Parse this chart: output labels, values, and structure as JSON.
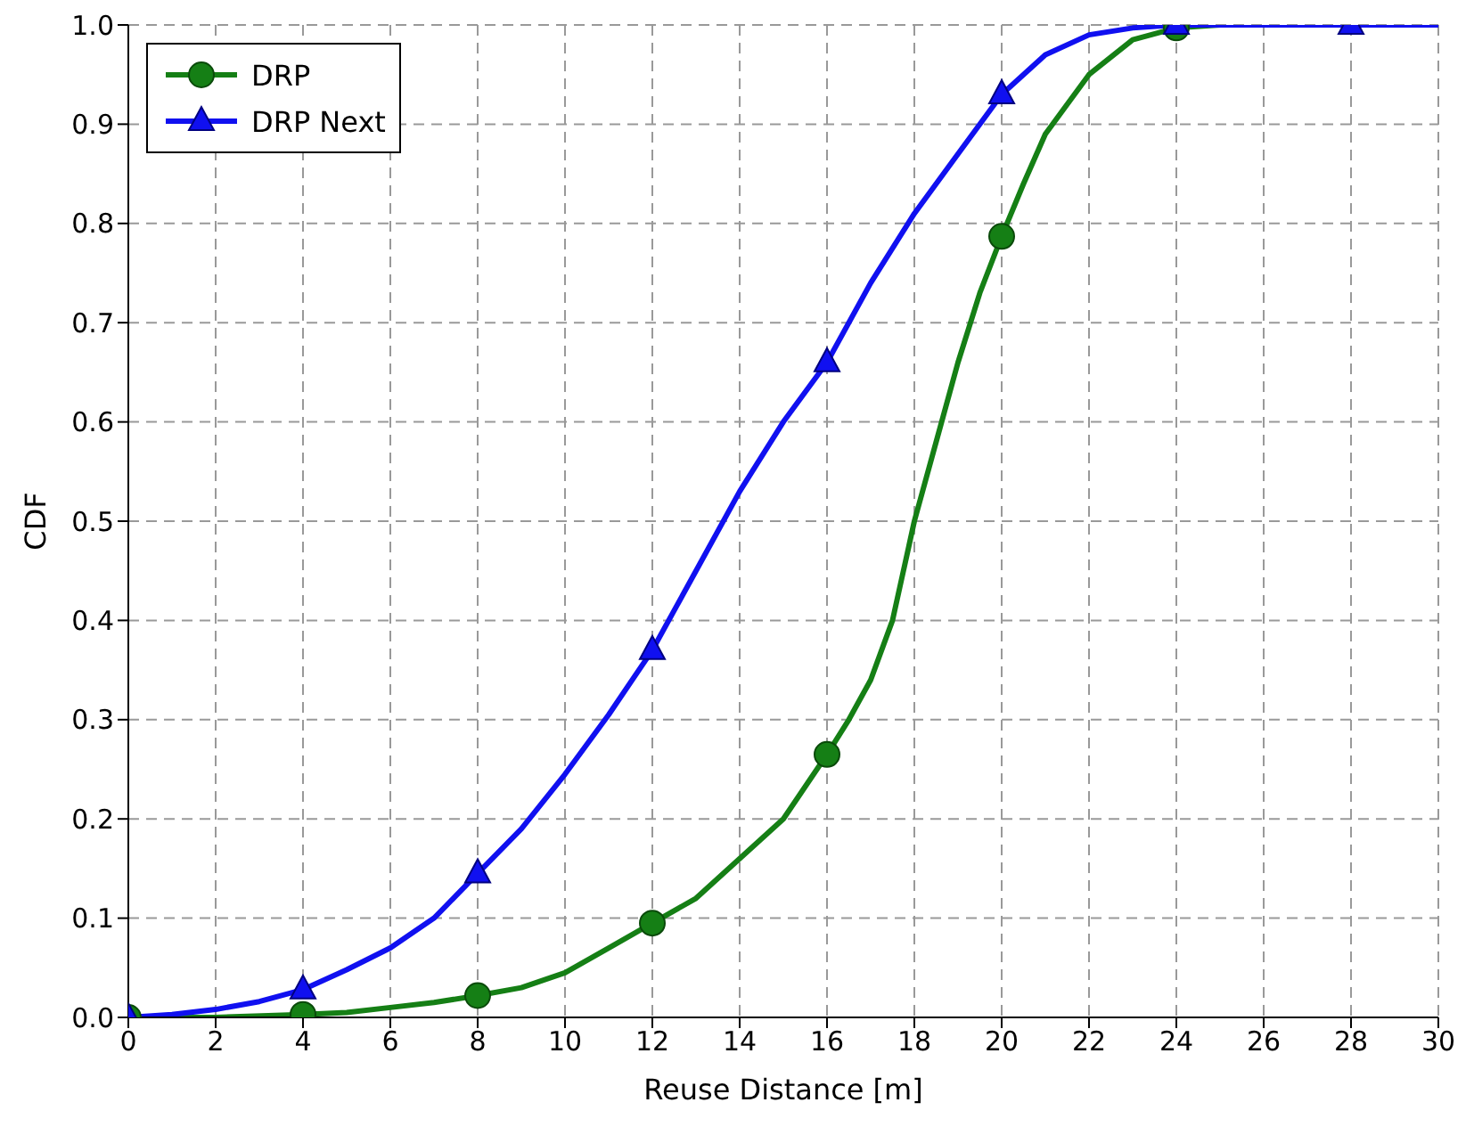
{
  "chart_data": {
    "type": "line",
    "xlabel": "Reuse Distance [m]",
    "ylabel": "CDF",
    "xlim": [
      0,
      30
    ],
    "xticks": [
      0,
      2,
      4,
      6,
      8,
      10,
      12,
      14,
      16,
      18,
      20,
      22,
      24,
      26,
      28,
      30
    ],
    "ylim": [
      0,
      1
    ],
    "yticks": [
      {
        "value": 0,
        "label": "0.0"
      },
      0.1,
      0.2,
      0.3,
      0.4,
      0.5,
      0.6,
      0.7,
      0.8,
      0.9,
      {
        "value": 1,
        "label": "1.0"
      }
    ],
    "grid": true,
    "legend": "top left",
    "line_style": "solid",
    "series": [
      {
        "name": "DRP",
        "color": "#157f15",
        "marker": "none",
        "x": [
          0,
          2,
          4,
          5,
          6,
          7,
          8,
          9,
          10,
          11,
          12,
          13,
          14,
          15,
          16,
          16.5,
          17,
          17.5,
          18,
          18.5,
          19,
          19.5,
          20,
          20.5,
          21,
          22,
          23,
          24,
          25
        ],
        "values": [
          0,
          0,
          0.003,
          0.005,
          0.01,
          0.015,
          0.022,
          0.03,
          0.045,
          0.07,
          0.095,
          0.12,
          0.16,
          0.2,
          0.265,
          0.3,
          0.34,
          0.4,
          0.5,
          0.58,
          0.66,
          0.73,
          0.787,
          0.84,
          0.89,
          0.95,
          0.985,
          0.997,
          1
        ]
      },
      {
        "name": "DRP Next",
        "color": "#1010f0",
        "marker": "none",
        "x": [
          0,
          1,
          2,
          3,
          4,
          5,
          6,
          7,
          8,
          9,
          10,
          11,
          12,
          13,
          14,
          15,
          16,
          17,
          18,
          19,
          20,
          21,
          22,
          23,
          24,
          28,
          30
        ],
        "values": [
          0,
          0.003,
          0.008,
          0.016,
          0.028,
          0.048,
          0.07,
          0.1,
          0.145,
          0.19,
          0.245,
          0.305,
          0.37,
          0.45,
          0.53,
          0.6,
          0.66,
          0.74,
          0.81,
          0.87,
          0.93,
          0.97,
          0.99,
          0.997,
          1,
          1,
          1
        ]
      },
      {
        "type": "scatter",
        "color": "#157f15",
        "marker": "circle",
        "x": [
          0,
          4,
          8,
          12,
          16,
          20,
          24
        ],
        "values": [
          0,
          0.003,
          0.022,
          0.095,
          0.265,
          0.787,
          0.997
        ]
      },
      {
        "type": "scatter",
        "color": "#1010f0",
        "marker": "triangle",
        "x": [
          0,
          4,
          8,
          12,
          16,
          20,
          24,
          28
        ],
        "values": [
          0,
          0.028,
          0.145,
          0.37,
          0.66,
          0.93,
          1,
          1
        ]
      }
    ]
  }
}
